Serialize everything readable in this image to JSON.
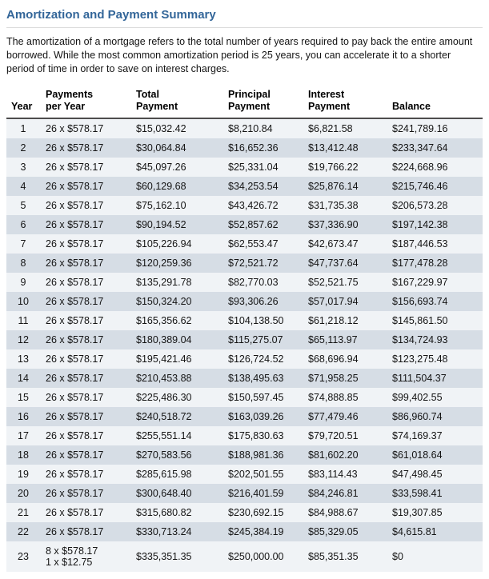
{
  "page": {
    "title": "Amortization and Payment Summary",
    "intro": "The amortization of a mortgage refers to the total number of years required to pay back the entire amount borrowed. While the most common amortization period is 25 years, you can accelerate it to a shorter period of time in order to save on interest charges."
  },
  "table": {
    "headers": [
      {
        "key": "year",
        "lines": [
          "Year"
        ]
      },
      {
        "key": "payments",
        "lines": [
          "Payments",
          "per Year"
        ]
      },
      {
        "key": "total",
        "lines": [
          "Total",
          "Payment"
        ]
      },
      {
        "key": "principal",
        "lines": [
          "Principal",
          "Payment"
        ]
      },
      {
        "key": "interest",
        "lines": [
          "Interest",
          "Payment"
        ]
      },
      {
        "key": "balance",
        "lines": [
          "Balance"
        ]
      }
    ],
    "rows": [
      {
        "year": "1",
        "payments": [
          "26 x $578.17"
        ],
        "total": "$15,032.42",
        "principal": "$8,210.84",
        "interest": "$6,821.58",
        "balance": "$241,789.16"
      },
      {
        "year": "2",
        "payments": [
          "26 x $578.17"
        ],
        "total": "$30,064.84",
        "principal": "$16,652.36",
        "interest": "$13,412.48",
        "balance": "$233,347.64"
      },
      {
        "year": "3",
        "payments": [
          "26 x $578.17"
        ],
        "total": "$45,097.26",
        "principal": "$25,331.04",
        "interest": "$19,766.22",
        "balance": "$224,668.96"
      },
      {
        "year": "4",
        "payments": [
          "26 x $578.17"
        ],
        "total": "$60,129.68",
        "principal": "$34,253.54",
        "interest": "$25,876.14",
        "balance": "$215,746.46"
      },
      {
        "year": "5",
        "payments": [
          "26 x $578.17"
        ],
        "total": "$75,162.10",
        "principal": "$43,426.72",
        "interest": "$31,735.38",
        "balance": "$206,573.28"
      },
      {
        "year": "6",
        "payments": [
          "26 x $578.17"
        ],
        "total": "$90,194.52",
        "principal": "$52,857.62",
        "interest": "$37,336.90",
        "balance": "$197,142.38"
      },
      {
        "year": "7",
        "payments": [
          "26 x $578.17"
        ],
        "total": "$105,226.94",
        "principal": "$62,553.47",
        "interest": "$42,673.47",
        "balance": "$187,446.53"
      },
      {
        "year": "8",
        "payments": [
          "26 x $578.17"
        ],
        "total": "$120,259.36",
        "principal": "$72,521.72",
        "interest": "$47,737.64",
        "balance": "$177,478.28"
      },
      {
        "year": "9",
        "payments": [
          "26 x $578.17"
        ],
        "total": "$135,291.78",
        "principal": "$82,770.03",
        "interest": "$52,521.75",
        "balance": "$167,229.97"
      },
      {
        "year": "10",
        "payments": [
          "26 x $578.17"
        ],
        "total": "$150,324.20",
        "principal": "$93,306.26",
        "interest": "$57,017.94",
        "balance": "$156,693.74"
      },
      {
        "year": "11",
        "payments": [
          "26 x $578.17"
        ],
        "total": "$165,356.62",
        "principal": "$104,138.50",
        "interest": "$61,218.12",
        "balance": "$145,861.50"
      },
      {
        "year": "12",
        "payments": [
          "26 x $578.17"
        ],
        "total": "$180,389.04",
        "principal": "$115,275.07",
        "interest": "$65,113.97",
        "balance": "$134,724.93"
      },
      {
        "year": "13",
        "payments": [
          "26 x $578.17"
        ],
        "total": "$195,421.46",
        "principal": "$126,724.52",
        "interest": "$68,696.94",
        "balance": "$123,275.48"
      },
      {
        "year": "14",
        "payments": [
          "26 x $578.17"
        ],
        "total": "$210,453.88",
        "principal": "$138,495.63",
        "interest": "$71,958.25",
        "balance": "$111,504.37"
      },
      {
        "year": "15",
        "payments": [
          "26 x $578.17"
        ],
        "total": "$225,486.30",
        "principal": "$150,597.45",
        "interest": "$74,888.85",
        "balance": "$99,402.55"
      },
      {
        "year": "16",
        "payments": [
          "26 x $578.17"
        ],
        "total": "$240,518.72",
        "principal": "$163,039.26",
        "interest": "$77,479.46",
        "balance": "$86,960.74"
      },
      {
        "year": "17",
        "payments": [
          "26 x $578.17"
        ],
        "total": "$255,551.14",
        "principal": "$175,830.63",
        "interest": "$79,720.51",
        "balance": "$74,169.37"
      },
      {
        "year": "18",
        "payments": [
          "26 x $578.17"
        ],
        "total": "$270,583.56",
        "principal": "$188,981.36",
        "interest": "$81,602.20",
        "balance": "$61,018.64"
      },
      {
        "year": "19",
        "payments": [
          "26 x $578.17"
        ],
        "total": "$285,615.98",
        "principal": "$202,501.55",
        "interest": "$83,114.43",
        "balance": "$47,498.45"
      },
      {
        "year": "20",
        "payments": [
          "26 x $578.17"
        ],
        "total": "$300,648.40",
        "principal": "$216,401.59",
        "interest": "$84,246.81",
        "balance": "$33,598.41"
      },
      {
        "year": "21",
        "payments": [
          "26 x $578.17"
        ],
        "total": "$315,680.82",
        "principal": "$230,692.15",
        "interest": "$84,988.67",
        "balance": "$19,307.85"
      },
      {
        "year": "22",
        "payments": [
          "26 x $578.17"
        ],
        "total": "$330,713.24",
        "principal": "$245,384.19",
        "interest": "$85,329.05",
        "balance": "$4,615.81"
      },
      {
        "year": "23",
        "payments": [
          "8 x $578.17",
          "1 x $12.75"
        ],
        "total": "$335,351.35",
        "principal": "$250,000.00",
        "interest": "$85,351.35",
        "balance": "$0"
      }
    ]
  }
}
